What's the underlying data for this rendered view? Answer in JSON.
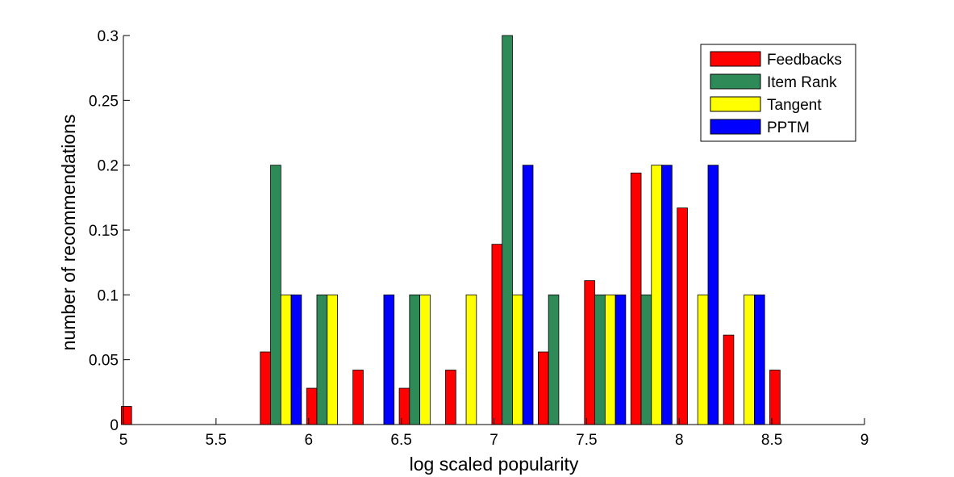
{
  "chart_data": {
    "type": "bar",
    "title": "",
    "xlabel": "log scaled popularity",
    "ylabel": "number of recommendations",
    "xlim": [
      5,
      9
    ],
    "ylim": [
      0,
      0.3
    ],
    "x_ticks": [
      "5",
      "5.5",
      "6",
      "6.5",
      "7",
      "7.5",
      "8",
      "8.5",
      "9"
    ],
    "y_ticks": [
      "0",
      "0.05",
      "0.1",
      "0.15",
      "0.2",
      "0.25",
      "0.3"
    ],
    "bin_centers": [
      5.1,
      5.35,
      5.6,
      5.85,
      6.1,
      6.35,
      6.6,
      6.85,
      7.1,
      7.35,
      7.6,
      7.85,
      8.1,
      8.35,
      8.6,
      8.85
    ],
    "legend_position": "top-right",
    "grid": false,
    "series": [
      {
        "name": "Feedbacks",
        "color": "#ff0000",
        "values": [
          0.014,
          0,
          0,
          0.056,
          0.028,
          0.042,
          0.028,
          0.042,
          0.139,
          0.056,
          0.111,
          0.194,
          0.167,
          0.069,
          0.042,
          0
        ]
      },
      {
        "name": "Item Rank",
        "color": "#2e8b57",
        "values": [
          0,
          0,
          0,
          0.2,
          0.1,
          0,
          0.1,
          0,
          0.3,
          0.1,
          0.1,
          0.1,
          0,
          0,
          0,
          0
        ]
      },
      {
        "name": "Tangent",
        "color": "#ffff00",
        "values": [
          0,
          0,
          0,
          0.1,
          0.1,
          0,
          0.1,
          0.1,
          0.1,
          0,
          0.1,
          0.2,
          0.1,
          0.1,
          0,
          0
        ]
      },
      {
        "name": "PPTM",
        "color": "#0000ff",
        "values": [
          0,
          0,
          0,
          0.1,
          0,
          0.1,
          0,
          0,
          0.2,
          0,
          0.1,
          0.2,
          0.2,
          0.1,
          0,
          0
        ]
      }
    ]
  }
}
